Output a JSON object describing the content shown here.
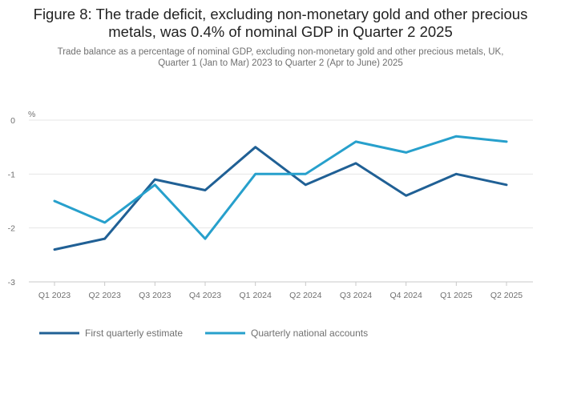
{
  "chart_data": {
    "type": "line",
    "title": "Figure 8: The trade deficit, excluding non-monetary gold and other precious metals, was 0.4% of nominal GDP in Quarter 2 2025",
    "title_line1": "Figure 8: The trade deficit, excluding non-monetary gold and other precious",
    "title_line2": "metals, was 0.4% of nominal GDP in Quarter 2 2025",
    "subtitle_line1": "Trade balance as a percentage of nominal GDP, excluding non-monetary gold and other precious metals, UK,",
    "subtitle_line2": "Quarter 1 (Jan to Mar) 2023 to Quarter 2 (Apr to June) 2025",
    "ylabel": "%",
    "xlabel": "",
    "ylim": [
      -3,
      0
    ],
    "yticks": [
      0,
      -1,
      -2,
      -3
    ],
    "ytick_labels": [
      "0",
      "-1",
      "-2",
      "-3"
    ],
    "categories": [
      "Q1 2023",
      "Q2 2023",
      "Q3 2023",
      "Q4 2023",
      "Q1 2024",
      "Q2 2024",
      "Q3 2024",
      "Q4 2024",
      "Q1 2025",
      "Q2 2025"
    ],
    "series": [
      {
        "name": "First quarterly estimate",
        "color": "#206095",
        "values": [
          -2.4,
          -2.2,
          -1.1,
          -1.3,
          -0.5,
          -1.2,
          -0.8,
          -1.4,
          -1.0,
          -1.2
        ]
      },
      {
        "name": "Quarterly national accounts",
        "color": "#27a0cc",
        "values": [
          -1.5,
          -1.9,
          -1.2,
          -2.2,
          -1.0,
          -1.0,
          -0.4,
          -0.6,
          -0.3,
          -0.4
        ]
      }
    ],
    "grid": true,
    "legend": "bottom-left"
  }
}
